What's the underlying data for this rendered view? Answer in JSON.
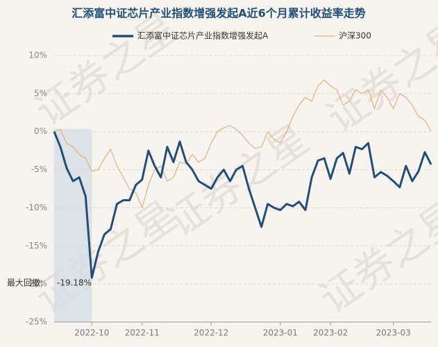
{
  "chart_data": {
    "type": "line",
    "title": "汇添富中证芯片产业指数增强发起A近6个月累计收益率走势",
    "watermark": "证券之星",
    "categories": [
      null,
      null,
      null,
      null,
      null,
      null,
      "2022-10",
      null,
      null,
      null,
      null,
      null,
      null,
      null,
      "2022-11",
      null,
      null,
      null,
      null,
      null,
      null,
      null,
      null,
      null,
      null,
      "2022-12",
      null,
      null,
      null,
      null,
      null,
      null,
      null,
      null,
      null,
      null,
      "2023-01",
      null,
      null,
      null,
      null,
      null,
      null,
      null,
      "2023-02",
      null,
      null,
      null,
      null,
      null,
      null,
      null,
      null,
      null,
      "2023-03",
      null,
      null,
      null,
      null,
      null,
      null
    ],
    "series": [
      {
        "name": "汇添富中证芯片产业指数增强发起A",
        "color": "#1f4e79",
        "values": [
          0,
          -2.0,
          -4.8,
          -6.5,
          -6.0,
          -8.5,
          -19.18,
          -15.8,
          -13.5,
          -12.8,
          -9.5,
          -9.0,
          -9.0,
          -7.0,
          -6.3,
          -2.5,
          -4.5,
          -6.0,
          -2.0,
          -4.0,
          -1.3,
          -4.0,
          -5.0,
          -6.5,
          -7.0,
          -7.5,
          -6.0,
          -5.0,
          -6.5,
          -5.0,
          -4.5,
          -7.5,
          -10.0,
          -12.5,
          -9.5,
          -10.0,
          -10.3,
          -9.5,
          -9.8,
          -9.2,
          -10.3,
          -6.0,
          -3.8,
          -3.5,
          -6.2,
          -3.5,
          -2.8,
          -5.5,
          -2.0,
          -2.3,
          -1.5,
          -6.0,
          -5.3,
          -5.8,
          -6.5,
          -7.3,
          -4.5,
          -6.5,
          -5.2,
          -2.7,
          -4.3
        ]
      },
      {
        "name": "沪深300",
        "color": "#e3b27a",
        "values": [
          0,
          0.3,
          -1.5,
          -2.0,
          -3.0,
          -3.5,
          -5.2,
          -5.0,
          -3.5,
          -2.3,
          -4.5,
          -6.0,
          -7.5,
          -8.0,
          -10.0,
          -7.0,
          -5.0,
          -4.5,
          -6.5,
          -6.0,
          -4.0,
          -4.2,
          -3.0,
          -4.0,
          -3.5,
          -1.5,
          0.0,
          0.5,
          0.8,
          0.3,
          -0.5,
          -1.5,
          -2.2,
          -2.0,
          0.0,
          -1.0,
          -1.5,
          0.0,
          2.0,
          3.5,
          4.5,
          4.0,
          6.0,
          6.8,
          6.0,
          5.5,
          3.5,
          4.0,
          5.5,
          5.0,
          5.5,
          3.0,
          5.5,
          4.5,
          3.0,
          5.0,
          4.5,
          3.5,
          2.0,
          1.5,
          0.1
        ]
      }
    ],
    "ylim": [
      -25,
      10
    ],
    "yticks": [
      {
        "value": -25,
        "label": "-25%"
      },
      {
        "value": -20,
        "label": "-20%"
      },
      {
        "value": -15,
        "label": "-15%"
      },
      {
        "value": -10,
        "label": "-10%"
      },
      {
        "value": -5,
        "label": "-5%"
      },
      {
        "value": 0,
        "label": "0%"
      },
      {
        "value": 5,
        "label": "5%"
      },
      {
        "value": 10,
        "label": "10%"
      }
    ],
    "grid": true,
    "drawdown": {
      "label": "最大回撤:",
      "value": -19.18,
      "value_label": "-19.18%"
    }
  }
}
